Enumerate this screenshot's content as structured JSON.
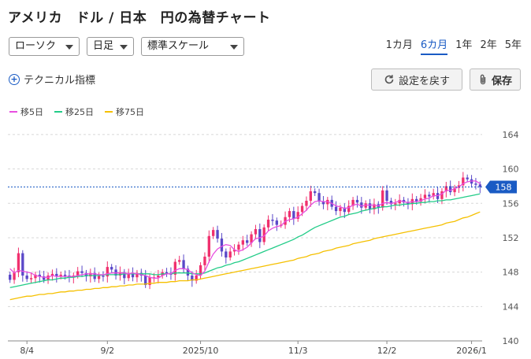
{
  "header": {
    "title": "アメリカ　ドル / 日本　円の為替チャート"
  },
  "controls": {
    "chart_type": "ローソク",
    "interval": "日足",
    "scale": "標準スケール"
  },
  "periods": [
    {
      "label": "1カ月",
      "active": false
    },
    {
      "label": "6カ月",
      "active": true
    },
    {
      "label": "1年",
      "active": false
    },
    {
      "label": "2年",
      "active": false
    },
    {
      "label": "5年",
      "active": false
    }
  ],
  "toolbar": {
    "technical_label": "テクニカル指標",
    "reset_label": "設定を戻す",
    "save_label": "保存"
  },
  "legend": [
    {
      "label": "移5日",
      "color": "#e84ee0"
    },
    {
      "label": "移25日",
      "color": "#22cc88"
    },
    {
      "label": "移75日",
      "color": "#f5c000"
    }
  ],
  "chart_data": {
    "type": "candlestick",
    "title": "",
    "xlabel": "",
    "ylabel": "",
    "y_ticks": [
      140,
      144,
      148,
      152,
      156,
      160,
      164
    ],
    "ylim": [
      140,
      165
    ],
    "x_tick_labels": [
      "8/4",
      "9/2",
      "2025/10",
      "11/3",
      "12/2",
      "2026/1"
    ],
    "x_tick_index": [
      4,
      23,
      45,
      68,
      89,
      109
    ],
    "current_price_label": "158",
    "current_price": 157.9,
    "up_color": "#f0306e",
    "down_color": "#5a48c8",
    "close": [
      147.1,
      148.0,
      150.2,
      147.6,
      147.2,
      147.3,
      147.7,
      147.5,
      147.1,
      147.6,
      147.8,
      147.5,
      147.7,
      147.6,
      147.4,
      147.6,
      148.1,
      147.9,
      147.5,
      147.9,
      147.2,
      147.6,
      147.5,
      148.6,
      148.3,
      147.6,
      148.0,
      147.3,
      147.9,
      147.4,
      147.9,
      147.6,
      146.5,
      147.4,
      147.4,
      147.6,
      148.0,
      147.9,
      147.7,
      149.2,
      149.4,
      148.4,
      147.6,
      147.0,
      147.6,
      148.8,
      149.8,
      152.2,
      152.9,
      151.9,
      150.4,
      149.7,
      150.4,
      150.6,
      151.2,
      151.7,
      151.4,
      152.4,
      153.0,
      151.5,
      153.2,
      154.1,
      154.0,
      153.5,
      153.5,
      154.4,
      155.1,
      154.2,
      155.0,
      155.7,
      156.3,
      157.4,
      157.2,
      156.2,
      155.9,
      156.4,
      155.6,
      155.1,
      155.5,
      155.0,
      155.7,
      156.4,
      156.1,
      155.5,
      156.0,
      155.3,
      155.9,
      155.5,
      157.5,
      156.3,
      155.9,
      156.0,
      156.4,
      156.1,
      155.9,
      156.5,
      156.2,
      156.6,
      157.0,
      156.8,
      157.2,
      156.5,
      157.4,
      158.0,
      157.3,
      157.8,
      158.1,
      159.0,
      158.8,
      158.3,
      158.2,
      157.9
    ],
    "ma5": [
      148.4,
      147.9,
      148.2,
      148.1,
      148.0,
      147.9,
      147.6,
      147.5,
      147.4,
      147.4,
      147.6,
      147.5,
      147.5,
      147.5,
      147.5,
      147.5,
      147.6,
      147.7,
      147.8,
      147.8,
      147.8,
      147.7,
      147.7,
      147.8,
      147.9,
      147.9,
      147.9,
      147.9,
      147.8,
      147.9,
      147.8,
      147.7,
      147.6,
      147.4,
      147.3,
      147.3,
      147.6,
      147.8,
      147.8,
      148.2,
      148.4,
      148.4,
      148.3,
      147.9,
      147.7,
      147.6,
      148.1,
      149.2,
      150.1,
      150.7,
      151.0,
      151.2,
      151.1,
      150.6,
      150.4,
      150.6,
      150.9,
      151.4,
      151.9,
      152.0,
      152.2,
      152.8,
      153.1,
      153.3,
      153.4,
      153.9,
      154.1,
      154.2,
      154.4,
      154.8,
      155.2,
      155.8,
      156.2,
      156.3,
      156.2,
      156.2,
      156.0,
      155.7,
      155.6,
      155.4,
      155.5,
      155.8,
      155.9,
      155.7,
      155.8,
      155.8,
      155.8,
      155.7,
      156.0,
      156.1,
      156.0,
      156.1,
      156.3,
      156.2,
      156.1,
      156.2,
      156.2,
      156.3,
      156.5,
      156.6,
      156.9,
      156.9,
      157.1,
      157.5,
      157.5,
      157.7,
      157.9,
      158.3,
      158.5,
      158.6,
      158.6,
      158.3
    ],
    "ma25": [
      146.2,
      146.3,
      146.4,
      146.5,
      146.6,
      146.7,
      146.8,
      146.9,
      147.0,
      147.1,
      147.1,
      147.2,
      147.3,
      147.3,
      147.4,
      147.4,
      147.5,
      147.5,
      147.6,
      147.6,
      147.6,
      147.6,
      147.7,
      147.7,
      147.7,
      147.7,
      147.7,
      147.8,
      147.8,
      147.8,
      147.8,
      147.8,
      147.8,
      147.8,
      147.7,
      147.7,
      147.8,
      147.8,
      147.8,
      147.9,
      147.9,
      147.9,
      147.9,
      147.8,
      147.8,
      147.8,
      147.9,
      148.1,
      148.3,
      148.5,
      148.6,
      148.8,
      148.9,
      149.1,
      149.2,
      149.4,
      149.6,
      149.8,
      150.0,
      150.2,
      150.4,
      150.6,
      150.8,
      151.0,
      151.2,
      151.4,
      151.6,
      151.8,
      152.1,
      152.3,
      152.6,
      152.9,
      153.2,
      153.4,
      153.6,
      153.8,
      154.0,
      154.2,
      154.4,
      154.5,
      154.7,
      154.8,
      154.9,
      155.1,
      155.2,
      155.3,
      155.4,
      155.5,
      155.6,
      155.6,
      155.7,
      155.8,
      155.8,
      155.9,
      155.9,
      156.0,
      156.0,
      156.1,
      156.1,
      156.2,
      156.2,
      156.3,
      156.3,
      156.4,
      156.4,
      156.5,
      156.6,
      156.7,
      156.8,
      156.9,
      157.0,
      157.1
    ],
    "ma75": [
      144.8,
      144.9,
      145.0,
      145.1,
      145.2,
      145.2,
      145.3,
      145.4,
      145.4,
      145.5,
      145.5,
      145.6,
      145.7,
      145.7,
      145.8,
      145.8,
      145.9,
      145.9,
      146.0,
      146.0,
      146.1,
      146.1,
      146.2,
      146.2,
      146.3,
      146.3,
      146.4,
      146.4,
      146.5,
      146.5,
      146.6,
      146.6,
      146.6,
      146.7,
      146.7,
      146.8,
      146.8,
      146.8,
      146.9,
      146.9,
      147.0,
      147.0,
      147.0,
      147.1,
      147.1,
      147.2,
      147.3,
      147.4,
      147.5,
      147.6,
      147.7,
      147.8,
      147.9,
      148.0,
      148.1,
      148.2,
      148.3,
      148.4,
      148.5,
      148.6,
      148.7,
      148.8,
      148.9,
      149.0,
      149.1,
      149.2,
      149.3,
      149.4,
      149.6,
      149.7,
      149.8,
      150.0,
      150.1,
      150.2,
      150.4,
      150.5,
      150.6,
      150.8,
      150.9,
      151.0,
      151.1,
      151.3,
      151.4,
      151.5,
      151.6,
      151.7,
      151.9,
      152.0,
      152.1,
      152.2,
      152.3,
      152.4,
      152.5,
      152.6,
      152.7,
      152.8,
      152.9,
      153.0,
      153.1,
      153.2,
      153.3,
      153.4,
      153.5,
      153.7,
      153.8,
      153.9,
      154.1,
      154.3,
      154.4,
      154.6,
      154.8,
      155.0
    ]
  }
}
